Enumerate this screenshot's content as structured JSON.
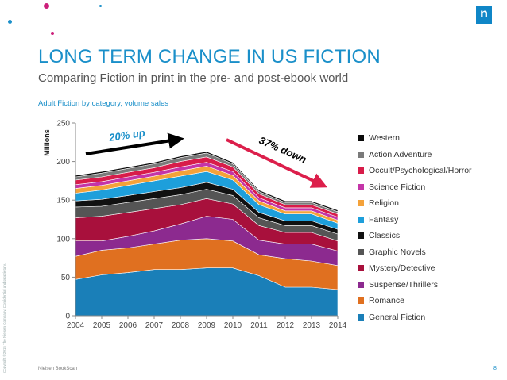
{
  "slide": {
    "title": "LONG TERM CHANGE IN US FICTION",
    "subtitle": "Comparing Fiction in print in the pre- and post-ebook world",
    "caption": "Adult Fiction by category, volume sales",
    "logo": "n",
    "source": "Nielsen BookScan",
    "page_number": "8",
    "copyright": "Copyright ©2015 The Nielsen Company. Confidential and proprietary."
  },
  "colors": {
    "accent": "#1a8fc9",
    "up_arrow": "#000000",
    "down_arrow": "#dc1f4b",
    "dots": [
      "#1a8fc9",
      "#cc1f7a",
      "#cc1f7a",
      "#1a8fc9"
    ]
  },
  "chart_data": {
    "type": "area",
    "stacked": true,
    "x": [
      "2004",
      "2005",
      "2006",
      "2007",
      "2008",
      "2009",
      "2010",
      "2011",
      "2012",
      "2013",
      "2014"
    ],
    "ylabel": "Millions",
    "ylim": [
      0,
      250
    ],
    "yticks": [
      0,
      50,
      100,
      150,
      200,
      250
    ],
    "grid": false,
    "legend_position": "right",
    "annotations": [
      {
        "text": "20% up",
        "color": "#1a8fc9"
      },
      {
        "text": "37% down",
        "color": "#000000"
      }
    ],
    "series": [
      {
        "name": "General Fiction",
        "color": "#1a7fb8",
        "values": [
          47,
          53,
          56,
          60,
          60,
          62,
          62,
          52,
          37,
          37,
          34
        ]
      },
      {
        "name": "Romance",
        "color": "#e07020",
        "values": [
          30,
          32,
          32,
          33,
          38,
          38,
          35,
          27,
          37,
          34,
          31
        ]
      },
      {
        "name": "Suspense/Thrillers",
        "color": "#8c2a8f",
        "values": [
          20,
          12,
          15,
          17,
          21,
          29,
          28,
          19,
          19,
          22,
          19
        ]
      },
      {
        "name": "Mystery/Detective",
        "color": "#a8103c",
        "values": [
          30,
          32,
          31,
          29,
          25,
          23,
          20,
          19,
          15,
          15,
          13
        ]
      },
      {
        "name": "Graphic Novels",
        "color": "#555555",
        "values": [
          14,
          13,
          13,
          13,
          13,
          12,
          11,
          10,
          9,
          9,
          9
        ]
      },
      {
        "name": "Classics",
        "color": "#111111",
        "values": [
          8,
          9,
          9,
          9,
          9,
          9,
          8,
          7,
          6,
          6,
          6
        ]
      },
      {
        "name": "Fantasy",
        "color": "#1e9fdb",
        "values": [
          10,
          12,
          13,
          14,
          15,
          14,
          12,
          10,
          9,
          9,
          8
        ]
      },
      {
        "name": "Religion",
        "color": "#f4a23a",
        "values": [
          6,
          6,
          6,
          6,
          7,
          7,
          6,
          5,
          4,
          4,
          4
        ]
      },
      {
        "name": "Science Fiction",
        "color": "#c435a8",
        "values": [
          5,
          5,
          5,
          5,
          5,
          5,
          5,
          4,
          4,
          4,
          4
        ]
      },
      {
        "name": "Occult/Psychological/Horror",
        "color": "#d81c4a",
        "values": [
          6,
          6,
          6,
          6,
          7,
          7,
          6,
          5,
          4,
          4,
          4
        ]
      },
      {
        "name": "Action Adventure",
        "color": "#7a7a7a",
        "values": [
          4,
          5,
          5,
          5,
          5,
          5,
          4,
          3,
          3,
          3,
          3
        ]
      },
      {
        "name": "Western",
        "color": "#0a0a0a",
        "values": [
          2,
          2,
          2,
          2,
          2,
          2,
          2,
          2,
          2,
          2,
          2
        ]
      }
    ]
  }
}
